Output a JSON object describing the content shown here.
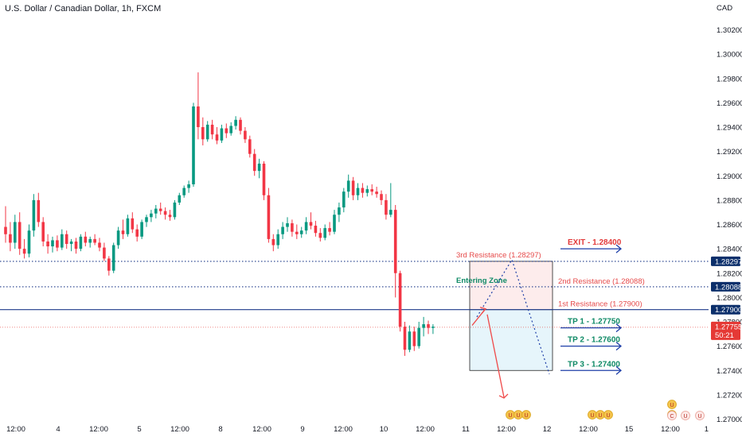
{
  "chart_data": {
    "type": "candlestick",
    "title": "U.S. Dollar / Canadian Dollar, 1h, FXCM",
    "currency": "CAD",
    "ylim": [
      1.27,
      1.3025
    ],
    "y_ticks": [
      "1.30200",
      "1.30000",
      "1.29800",
      "1.29600",
      "1.29400",
      "1.29200",
      "1.29000",
      "1.28800",
      "1.28600",
      "1.28400",
      "1.28200",
      "1.28000",
      "1.27800",
      "1.27600",
      "1.27400",
      "1.27200",
      "1.27000"
    ],
    "x_ticks": [
      "12:00",
      "4",
      "12:00",
      "5",
      "12:00",
      "8",
      "12:00",
      "9",
      "12:00",
      "10",
      "12:00",
      "11",
      "12:00",
      "12",
      "12:00",
      "15",
      "12:00",
      "1"
    ],
    "price_badges": [
      {
        "label": "1.28297",
        "value": 1.28297,
        "style": "blue"
      },
      {
        "label": "1.28088",
        "value": 1.28088,
        "style": "blue"
      },
      {
        "label": "1.27900",
        "value": 1.279,
        "style": "blue"
      },
      {
        "label": "1.27755",
        "value": 1.27755,
        "style": "red",
        "countdown": "50:21"
      }
    ],
    "levels": [
      {
        "name": "3rd Resistance (1.28297)",
        "value": 1.28297,
        "line": "dotted"
      },
      {
        "name": "2nd Resistance (1.28088)",
        "value": 1.28088,
        "line": "dotted"
      },
      {
        "name": "1st Resistance (1.27900)",
        "value": 1.279,
        "line": "solid"
      }
    ],
    "zone_label": "Entering Zone",
    "targets": [
      {
        "label": "EXIT - 1.28400",
        "value": 1.284,
        "kind": "exit"
      },
      {
        "label": "TP 1 - 1.27750",
        "value": 1.2775,
        "kind": "tp"
      },
      {
        "label": "TP 2 - 1.27600",
        "value": 1.276,
        "kind": "tp"
      },
      {
        "label": "TP 3 - 1.27400",
        "value": 1.274,
        "kind": "tp"
      }
    ],
    "candles": [
      [
        1.2858,
        1.2875,
        1.2845,
        1.2852
      ],
      [
        1.2852,
        1.2862,
        1.2838,
        1.2845
      ],
      [
        1.2845,
        1.2868,
        1.284,
        1.2862
      ],
      [
        1.2862,
        1.287,
        1.2835,
        1.284
      ],
      [
        1.284,
        1.2848,
        1.2832,
        1.2836
      ],
      [
        1.2836,
        1.286,
        1.2833,
        1.2855
      ],
      [
        1.2855,
        1.2885,
        1.285,
        1.288
      ],
      [
        1.288,
        1.2886,
        1.2858,
        1.2862
      ],
      [
        1.2862,
        1.2866,
        1.2842,
        1.2846
      ],
      [
        1.2846,
        1.2852,
        1.2836,
        1.2842
      ],
      [
        1.2842,
        1.285,
        1.2837,
        1.2847
      ],
      [
        1.2847,
        1.2851,
        1.2838,
        1.2841
      ],
      [
        1.2841,
        1.2856,
        1.2839,
        1.2852
      ],
      [
        1.2852,
        1.2855,
        1.284,
        1.2844
      ],
      [
        1.2844,
        1.2848,
        1.2838,
        1.2846
      ],
      [
        1.2846,
        1.2849,
        1.2836,
        1.284
      ],
      [
        1.284,
        1.2852,
        1.2838,
        1.285
      ],
      [
        1.285,
        1.2854,
        1.2842,
        1.2845
      ],
      [
        1.2845,
        1.285,
        1.2841,
        1.2848
      ],
      [
        1.2848,
        1.2852,
        1.2843,
        1.2845
      ],
      [
        1.2845,
        1.2849,
        1.2838,
        1.2841
      ],
      [
        1.2841,
        1.2845,
        1.283,
        1.2832
      ],
      [
        1.2832,
        1.2834,
        1.2818,
        1.2822
      ],
      [
        1.2822,
        1.2845,
        1.282,
        1.2843
      ],
      [
        1.2843,
        1.2858,
        1.284,
        1.2855
      ],
      [
        1.2855,
        1.2864,
        1.2848,
        1.2852
      ],
      [
        1.2852,
        1.2868,
        1.285,
        1.2865
      ],
      [
        1.2865,
        1.287,
        1.2853,
        1.2856
      ],
      [
        1.2856,
        1.286,
        1.2846,
        1.285
      ],
      [
        1.285,
        1.2864,
        1.2848,
        1.2862
      ],
      [
        1.2862,
        1.2868,
        1.2858,
        1.2866
      ],
      [
        1.2866,
        1.2872,
        1.2862,
        1.2869
      ],
      [
        1.2869,
        1.2876,
        1.2865,
        1.2873
      ],
      [
        1.2873,
        1.2878,
        1.2868,
        1.2871
      ],
      [
        1.2871,
        1.2874,
        1.2864,
        1.2868
      ],
      [
        1.2868,
        1.2872,
        1.2863,
        1.2866
      ],
      [
        1.2866,
        1.288,
        1.2864,
        1.2878
      ],
      [
        1.2878,
        1.2886,
        1.2876,
        1.2884
      ],
      [
        1.2884,
        1.2892,
        1.2882,
        1.289
      ],
      [
        1.289,
        1.2896,
        1.2886,
        1.2893
      ],
      [
        1.2893,
        1.296,
        1.2891,
        1.2957
      ],
      [
        1.2957,
        1.2985,
        1.293,
        1.294
      ],
      [
        1.294,
        1.2948,
        1.2925,
        1.293
      ],
      [
        1.293,
        1.2945,
        1.2928,
        1.2942
      ],
      [
        1.2942,
        1.2946,
        1.293,
        1.2934
      ],
      [
        1.2934,
        1.294,
        1.2926,
        1.2929
      ],
      [
        1.2929,
        1.2942,
        1.2927,
        1.2939
      ],
      [
        1.2939,
        1.2943,
        1.2931,
        1.2935
      ],
      [
        1.2935,
        1.2944,
        1.2933,
        1.2941
      ],
      [
        1.2941,
        1.2949,
        1.2938,
        1.2946
      ],
      [
        1.2946,
        1.2948,
        1.2934,
        1.2937
      ],
      [
        1.2937,
        1.294,
        1.2927,
        1.293
      ],
      [
        1.293,
        1.2933,
        1.2915,
        1.2918
      ],
      [
        1.2918,
        1.2922,
        1.29,
        1.2904
      ],
      [
        1.2904,
        1.2914,
        1.2898,
        1.291
      ],
      [
        1.291,
        1.2912,
        1.288,
        1.2884
      ],
      [
        1.2884,
        1.289,
        1.2845,
        1.2848
      ],
      [
        1.2848,
        1.2852,
        1.2838,
        1.2843
      ],
      [
        1.2843,
        1.2856,
        1.284,
        1.2852
      ],
      [
        1.2852,
        1.2862,
        1.2848,
        1.2858
      ],
      [
        1.2858,
        1.2866,
        1.2854,
        1.2861
      ],
      [
        1.2861,
        1.2864,
        1.285,
        1.2854
      ],
      [
        1.2854,
        1.286,
        1.2848,
        1.2852
      ],
      [
        1.2852,
        1.2858,
        1.2849,
        1.2855
      ],
      [
        1.2855,
        1.2866,
        1.2852,
        1.2862
      ],
      [
        1.2862,
        1.287,
        1.2856,
        1.2859
      ],
      [
        1.2859,
        1.2863,
        1.285,
        1.2853
      ],
      [
        1.2853,
        1.2857,
        1.2846,
        1.2849
      ],
      [
        1.2849,
        1.286,
        1.2847,
        1.2857
      ],
      [
        1.2857,
        1.2862,
        1.2851,
        1.2854
      ],
      [
        1.2854,
        1.2872,
        1.2852,
        1.2868
      ],
      [
        1.2868,
        1.2878,
        1.2862,
        1.2874
      ],
      [
        1.2874,
        1.289,
        1.287,
        1.2887
      ],
      [
        1.2887,
        1.2901,
        1.2882,
        1.2896
      ],
      [
        1.2896,
        1.2899,
        1.288,
        1.2884
      ],
      [
        1.2884,
        1.2894,
        1.288,
        1.289
      ],
      [
        1.289,
        1.2894,
        1.2882,
        1.2886
      ],
      [
        1.2886,
        1.2892,
        1.2883,
        1.2889
      ],
      [
        1.2889,
        1.2893,
        1.2884,
        1.2887
      ],
      [
        1.2887,
        1.2891,
        1.2882,
        1.2885
      ],
      [
        1.2885,
        1.2888,
        1.2876,
        1.288
      ],
      [
        1.288,
        1.2885,
        1.2864,
        1.2868
      ],
      [
        1.2868,
        1.2894,
        1.2866,
        1.2872
      ],
      [
        1.2872,
        1.2876,
        1.28,
        1.282
      ],
      [
        1.282,
        1.2822,
        1.2772,
        1.2776
      ],
      [
        1.2776,
        1.278,
        1.2752,
        1.2757
      ],
      [
        1.2757,
        1.2777,
        1.2755,
        1.2772
      ],
      [
        1.2772,
        1.2776,
        1.2756,
        1.276
      ],
      [
        1.276,
        1.278,
        1.2758,
        1.2775
      ],
      [
        1.2775,
        1.2784,
        1.2768,
        1.2778
      ],
      [
        1.2778,
        1.2781,
        1.277,
        1.2775
      ],
      [
        1.2775,
        1.2778,
        1.277,
        1.2776
      ]
    ]
  },
  "events": {
    "row1": [
      {
        "label": "U"
      },
      {
        "label": "U"
      },
      {
        "label": "U"
      },
      {
        "label": "U"
      },
      {
        "label": "U"
      },
      {
        "label": "U"
      },
      {
        "label": "U"
      }
    ],
    "row2": [
      {
        "label": "U"
      },
      {
        "label": "C"
      },
      {
        "label": "U"
      },
      {
        "label": "U"
      }
    ]
  },
  "colors": {
    "up": "#089981",
    "down": "#f23645",
    "level_blue": "#1e3a8a",
    "zone_red_fill": "#fdecec",
    "zone_blue_fill": "#e6f5fb",
    "arrow_blue": "#1e3fa8",
    "arrow_red": "#ef4b4b",
    "badge_blue": "#0b2f6b",
    "badge_red": "#e53935"
  }
}
